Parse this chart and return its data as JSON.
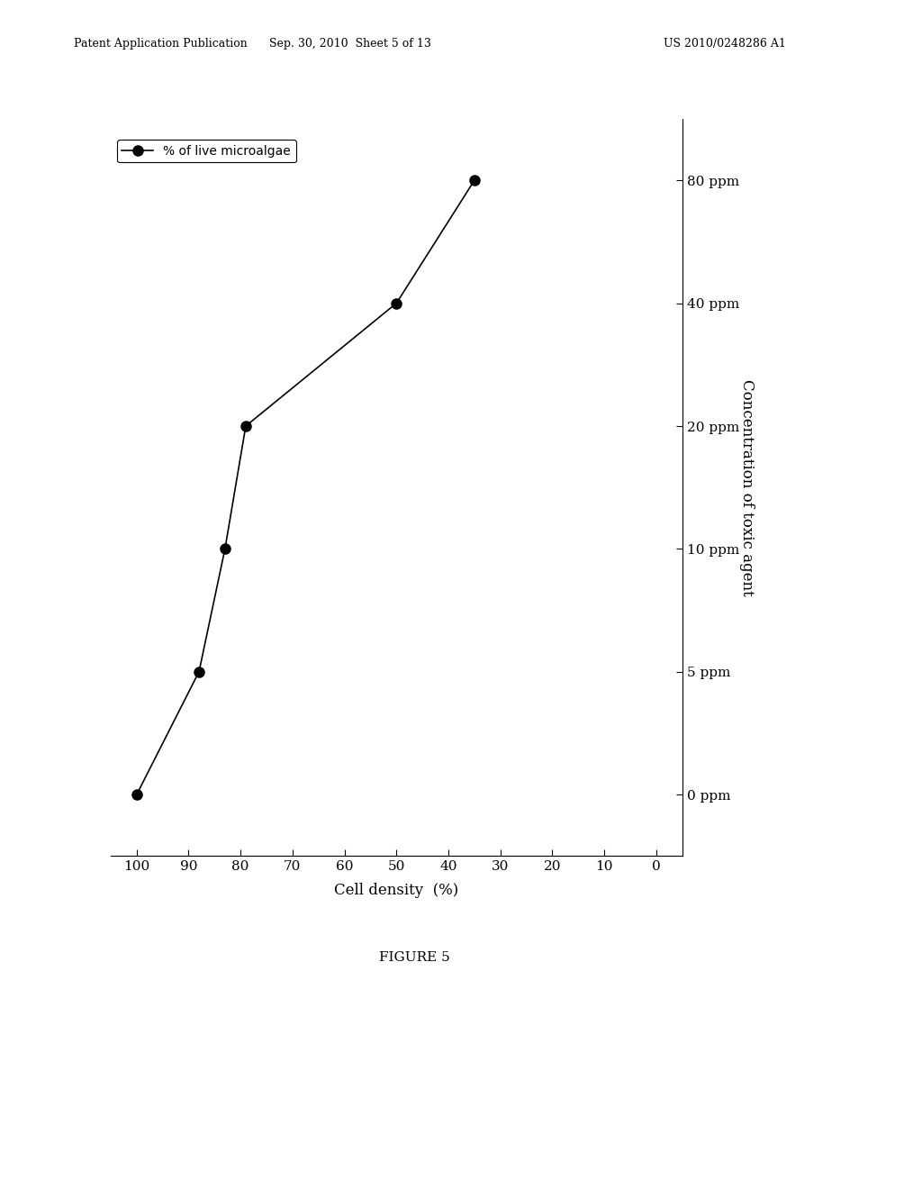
{
  "title": "",
  "header_line1": "Patent Application Publication",
  "header_line2": "Sep. 30, 2010  Sheet 5 of 13",
  "header_line3": "US 2010/0248286 A1",
  "figure_label": "FIGURE 5",
  "legend_label": "% of live microalgae",
  "xlabel": "Cell density  (%)",
  "ylabel": "Concentration of toxic agent",
  "x_ticks": [
    100,
    90,
    80,
    70,
    60,
    50,
    40,
    30,
    20,
    10,
    0
  ],
  "y_tick_labels": [
    "0 ppm",
    "5 ppm",
    "10 ppm",
    "20 ppm",
    "40 ppm",
    "80 ppm"
  ],
  "y_tick_positions": [
    0,
    1,
    2,
    3,
    4,
    5
  ],
  "cell_density": [
    100,
    88,
    83,
    79,
    50,
    35
  ],
  "concentration_idx": [
    0,
    1,
    2,
    3,
    4,
    5
  ],
  "bg_color": "#ffffff",
  "line_color": "#000000",
  "marker_color": "#000000",
  "marker_size": 8,
  "line_width": 1.2
}
